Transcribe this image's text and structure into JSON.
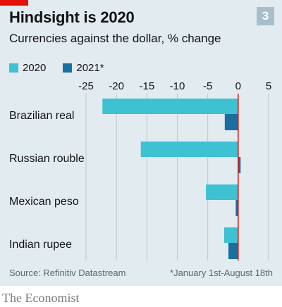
{
  "header": {
    "title": "Hindsight is 2020",
    "subtitle": "Currencies against the dollar, % change",
    "badge": "3"
  },
  "legend": [
    {
      "label": "2020",
      "color": "#3ec1d3"
    },
    {
      "label": "2021*",
      "color": "#1a6fa0"
    }
  ],
  "chart_data": {
    "type": "bar",
    "orientation": "horizontal",
    "categories": [
      "Brazilian real",
      "Russian rouble",
      "Mexican peso",
      "Indian rupee"
    ],
    "series": [
      {
        "name": "2020",
        "values": [
          -22.3,
          -16.0,
          -5.3,
          -2.3
        ],
        "color": "#3ec1d3"
      },
      {
        "name": "2021*",
        "values": [
          -2.2,
          0.4,
          -0.4,
          -1.6
        ],
        "color": "#1a6fa0"
      }
    ],
    "xlim": [
      -25,
      5
    ],
    "xticks": [
      -25,
      -20,
      -15,
      -10,
      -5,
      0,
      5
    ],
    "grid": true,
    "zero_line_color": "#e3120b",
    "legend_position": "top-left"
  },
  "footer": {
    "source": "Source: Refinitiv Datastream",
    "note": "*January 1st-August 18th",
    "brand": "The Economist"
  }
}
